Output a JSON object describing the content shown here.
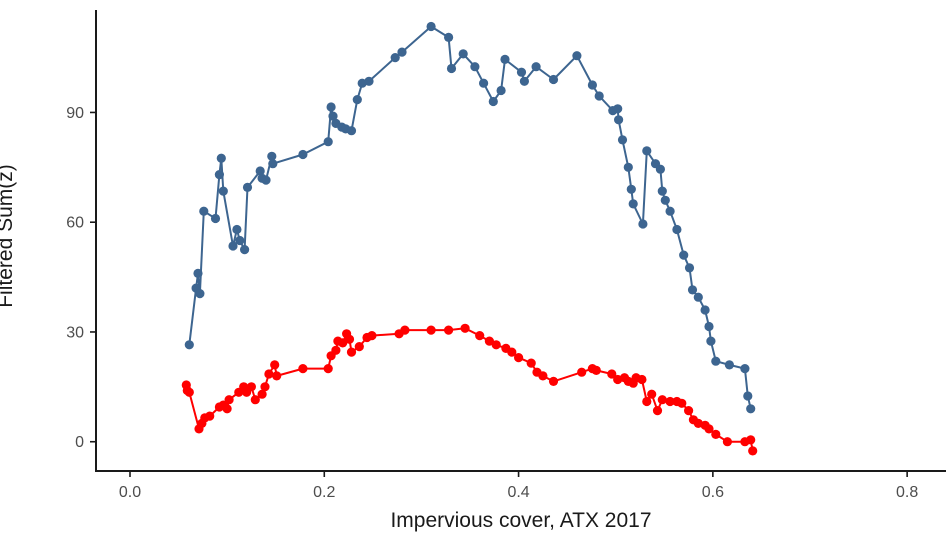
{
  "chart_data": {
    "type": "line",
    "title": "",
    "xlabel": "Impervious cover, ATX 2017",
    "ylabel": "Filtered Sum(z)",
    "xlim": [
      -0.035,
      0.84
    ],
    "ylim": [
      -8,
      118
    ],
    "x_ticks": [
      0.0,
      0.2,
      0.4,
      0.6,
      0.8
    ],
    "x_tick_labels": [
      "0.0",
      "0.2",
      "0.4",
      "0.6",
      "0.8"
    ],
    "y_ticks": [
      0,
      30,
      60,
      90
    ],
    "y_tick_labels": [
      "0",
      "30",
      "60",
      "90"
    ],
    "grid": false,
    "series": [
      {
        "color": "#3d6590",
        "points": [
          [
            0.061,
            26.5
          ],
          [
            0.068,
            42
          ],
          [
            0.07,
            46
          ],
          [
            0.072,
            40.5
          ],
          [
            0.076,
            63
          ],
          [
            0.088,
            61
          ],
          [
            0.092,
            73
          ],
          [
            0.094,
            77.5
          ],
          [
            0.096,
            68.5
          ],
          [
            0.106,
            53.5
          ],
          [
            0.11,
            58
          ],
          [
            0.113,
            55
          ],
          [
            0.118,
            52.5
          ],
          [
            0.121,
            69.5
          ],
          [
            0.134,
            74
          ],
          [
            0.136,
            72
          ],
          [
            0.14,
            71.5
          ],
          [
            0.146,
            78
          ],
          [
            0.147,
            76
          ],
          [
            0.178,
            78.5
          ],
          [
            0.204,
            82
          ],
          [
            0.207,
            91.5
          ],
          [
            0.209,
            89
          ],
          [
            0.212,
            87
          ],
          [
            0.218,
            86
          ],
          [
            0.222,
            85.5
          ],
          [
            0.228,
            85
          ],
          [
            0.234,
            93.5
          ],
          [
            0.239,
            98
          ],
          [
            0.246,
            98.5
          ],
          [
            0.273,
            105
          ],
          [
            0.28,
            106.5
          ],
          [
            0.31,
            113.5
          ],
          [
            0.328,
            110.5
          ],
          [
            0.331,
            102
          ],
          [
            0.343,
            106
          ],
          [
            0.355,
            102.5
          ],
          [
            0.364,
            98
          ],
          [
            0.374,
            93
          ],
          [
            0.382,
            96
          ],
          [
            0.386,
            104.5
          ],
          [
            0.403,
            101
          ],
          [
            0.406,
            98.5
          ],
          [
            0.418,
            102.5
          ],
          [
            0.436,
            99
          ],
          [
            0.46,
            105.5
          ],
          [
            0.476,
            97.5
          ],
          [
            0.483,
            94.5
          ],
          [
            0.497,
            90.5
          ],
          [
            0.502,
            91
          ],
          [
            0.503,
            88
          ],
          [
            0.507,
            82.5
          ],
          [
            0.513,
            75
          ],
          [
            0.516,
            69
          ],
          [
            0.518,
            65
          ],
          [
            0.528,
            59.5
          ],
          [
            0.532,
            79.5
          ],
          [
            0.541,
            76
          ],
          [
            0.546,
            74.5
          ],
          [
            0.548,
            68.5
          ],
          [
            0.551,
            66
          ],
          [
            0.556,
            63
          ],
          [
            0.563,
            58
          ],
          [
            0.57,
            51
          ],
          [
            0.576,
            47.5
          ],
          [
            0.579,
            41.5
          ],
          [
            0.585,
            39.5
          ],
          [
            0.592,
            36
          ],
          [
            0.596,
            31.5
          ],
          [
            0.598,
            27.5
          ],
          [
            0.603,
            22
          ],
          [
            0.617,
            21
          ],
          [
            0.633,
            20
          ],
          [
            0.636,
            12.5
          ],
          [
            0.639,
            9
          ]
        ]
      },
      {
        "color": "#ff0000",
        "points": [
          [
            0.058,
            15.5
          ],
          [
            0.059,
            14
          ],
          [
            0.061,
            13.5
          ],
          [
            0.071,
            3.5
          ],
          [
            0.074,
            5
          ],
          [
            0.077,
            6.5
          ],
          [
            0.082,
            7
          ],
          [
            0.092,
            9.5
          ],
          [
            0.096,
            10
          ],
          [
            0.1,
            9
          ],
          [
            0.102,
            11.5
          ],
          [
            0.112,
            13.5
          ],
          [
            0.117,
            15
          ],
          [
            0.12,
            13.5
          ],
          [
            0.125,
            15
          ],
          [
            0.129,
            11.5
          ],
          [
            0.136,
            13
          ],
          [
            0.139,
            15
          ],
          [
            0.143,
            18.5
          ],
          [
            0.149,
            21
          ],
          [
            0.151,
            18
          ],
          [
            0.178,
            20
          ],
          [
            0.204,
            20
          ],
          [
            0.207,
            23.5
          ],
          [
            0.212,
            25
          ],
          [
            0.214,
            27.5
          ],
          [
            0.219,
            27
          ],
          [
            0.223,
            29.5
          ],
          [
            0.226,
            28
          ],
          [
            0.228,
            24.5
          ],
          [
            0.236,
            26
          ],
          [
            0.244,
            28.5
          ],
          [
            0.249,
            29
          ],
          [
            0.277,
            29.5
          ],
          [
            0.283,
            30.5
          ],
          [
            0.31,
            30.5
          ],
          [
            0.328,
            30.5
          ],
          [
            0.345,
            31
          ],
          [
            0.36,
            29
          ],
          [
            0.37,
            27.5
          ],
          [
            0.377,
            26.5
          ],
          [
            0.387,
            25.5
          ],
          [
            0.393,
            24.5
          ],
          [
            0.4,
            23
          ],
          [
            0.413,
            21.5
          ],
          [
            0.419,
            19
          ],
          [
            0.425,
            18
          ],
          [
            0.436,
            16.5
          ],
          [
            0.465,
            19
          ],
          [
            0.476,
            20
          ],
          [
            0.48,
            19.5
          ],
          [
            0.496,
            18.5
          ],
          [
            0.502,
            17
          ],
          [
            0.509,
            17.5
          ],
          [
            0.513,
            16.5
          ],
          [
            0.518,
            16
          ],
          [
            0.521,
            17.5
          ],
          [
            0.527,
            17
          ],
          [
            0.532,
            11
          ],
          [
            0.537,
            13
          ],
          [
            0.543,
            8.5
          ],
          [
            0.548,
            11.5
          ],
          [
            0.556,
            11
          ],
          [
            0.563,
            11
          ],
          [
            0.568,
            10.5
          ],
          [
            0.575,
            8.5
          ],
          [
            0.58,
            6
          ],
          [
            0.585,
            5
          ],
          [
            0.592,
            4.5
          ],
          [
            0.596,
            3.5
          ],
          [
            0.603,
            2
          ],
          [
            0.615,
            0
          ],
          [
            0.633,
            0
          ],
          [
            0.639,
            0.5
          ],
          [
            0.641,
            -2.5
          ]
        ]
      }
    ]
  }
}
